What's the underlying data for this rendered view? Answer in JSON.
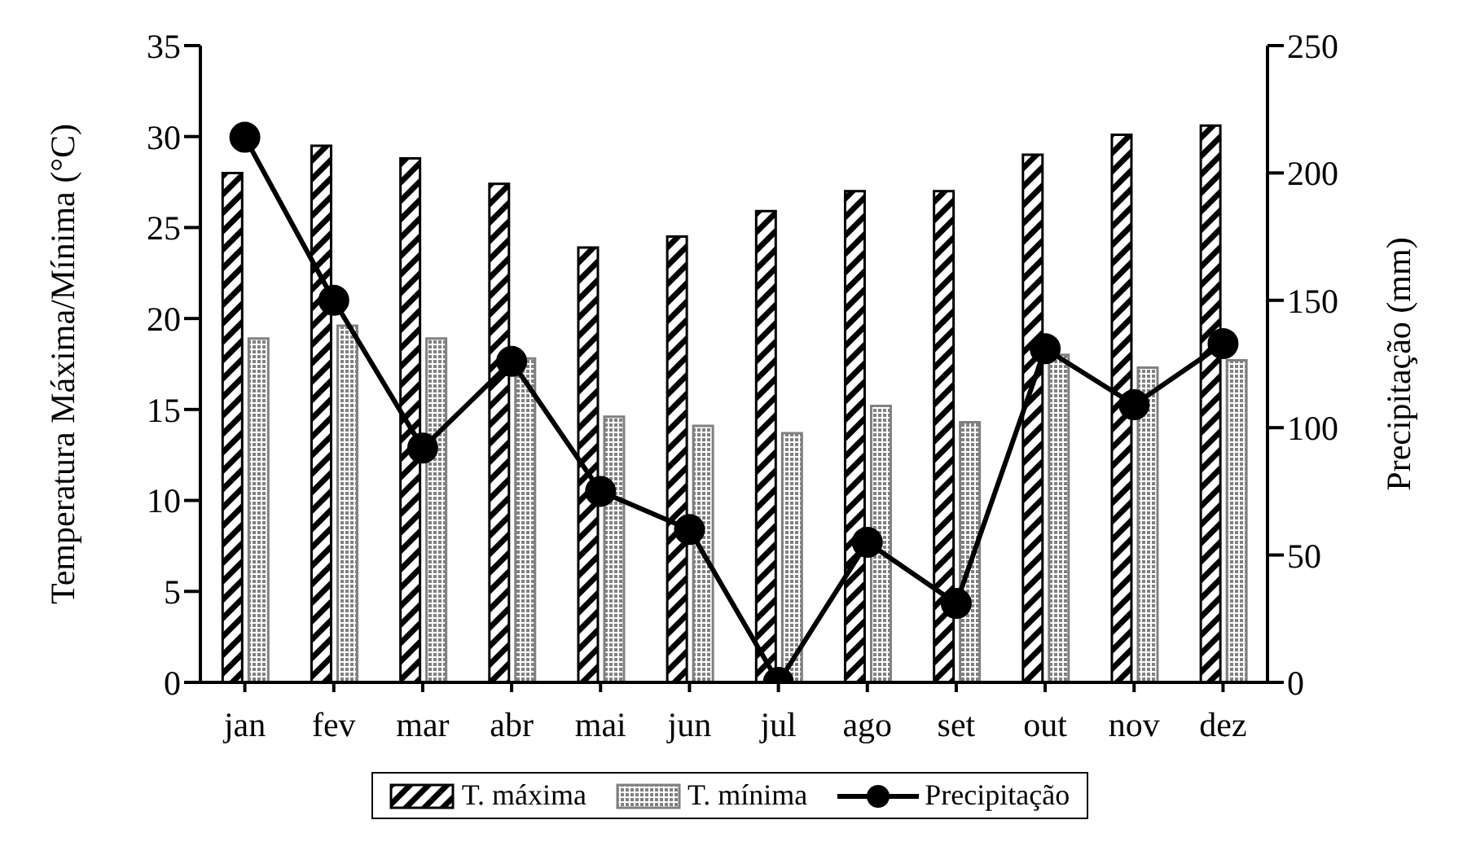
{
  "chart_data": {
    "type": "bar",
    "categories": [
      "jan",
      "fev",
      "mar",
      "abr",
      "mai",
      "jun",
      "jul",
      "ago",
      "set",
      "out",
      "nov",
      "dez"
    ],
    "series": [
      {
        "name": "T. máxima",
        "color": "#000000",
        "values": [
          28,
          29.5,
          28.8,
          27.4,
          23.9,
          24.5,
          25.9,
          27,
          27,
          29,
          30.1,
          30.6
        ]
      },
      {
        "name": "T. mínima",
        "color": "#808080",
        "values": [
          18.9,
          19.6,
          18.9,
          17.8,
          14.6,
          14.1,
          13.7,
          15.2,
          14.3,
          18,
          17.3,
          17.7
        ]
      },
      {
        "name": "Precipitação",
        "type": "line",
        "axis": "y2",
        "color": "#000000",
        "values": [
          214,
          150,
          92,
          126,
          75,
          60,
          0,
          55,
          31,
          131,
          109,
          133
        ]
      }
    ],
    "ylabel": "Temperatura Máxima/Mínima (°C)",
    "y2label": "Precipitação (mm)",
    "ylim": [
      0,
      35
    ],
    "yticks": [
      0,
      5,
      10,
      15,
      20,
      25,
      30,
      35
    ],
    "y2lim": [
      0,
      250
    ],
    "y2ticks": [
      0,
      50,
      100,
      150,
      200,
      250
    ],
    "legend": "bottom",
    "marker": "circle",
    "line_style": "solid",
    "grid": false
  }
}
